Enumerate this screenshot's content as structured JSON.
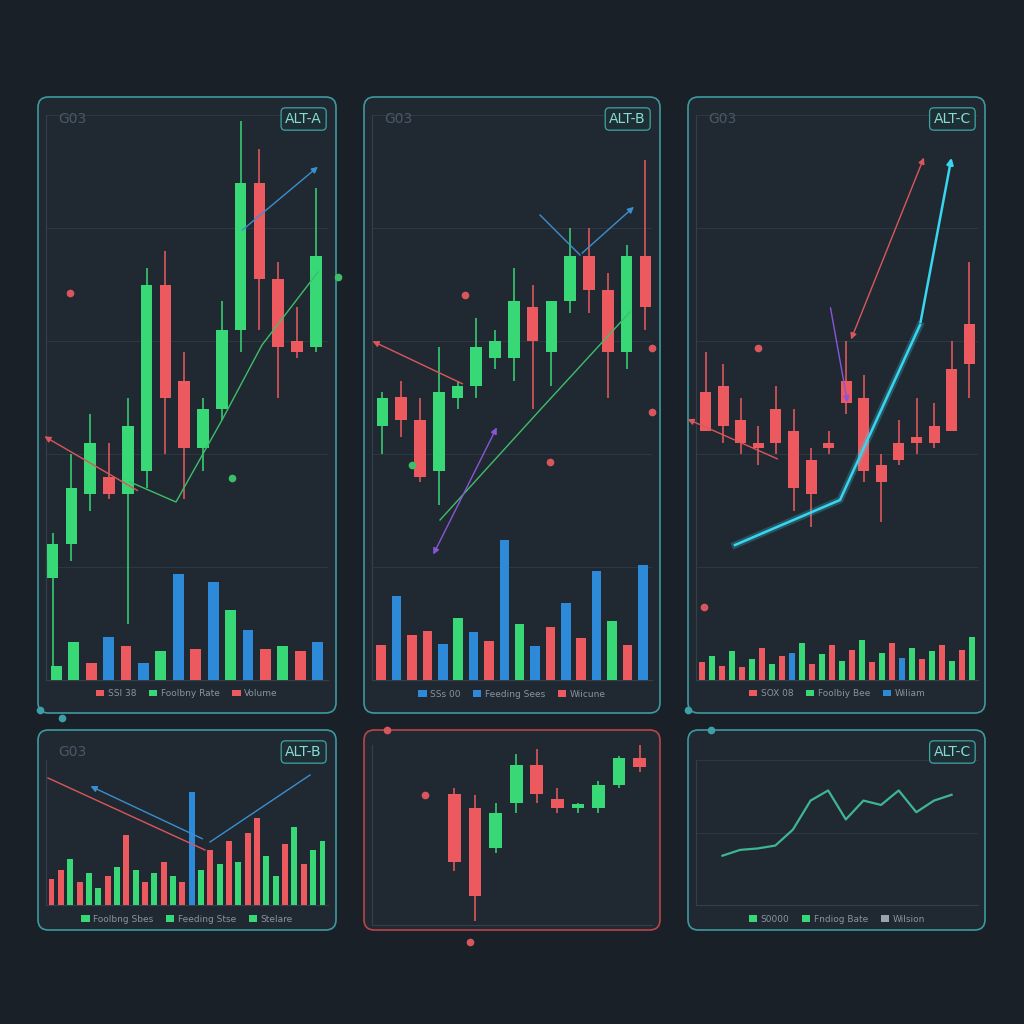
{
  "chart_data": [
    {
      "type": "candlestick",
      "title": "ALT-A",
      "subtitle": "G03",
      "categories": [
        null,
        null,
        null,
        null,
        null,
        null,
        null,
        null,
        null,
        null,
        null,
        null,
        null,
        null,
        null
      ],
      "values": [
        [
          18,
          26,
          2,
          24
        ],
        [
          24,
          40,
          21,
          34
        ],
        [
          33,
          47,
          30,
          42
        ],
        [
          36,
          42,
          32,
          33
        ],
        [
          33,
          50,
          10,
          45
        ],
        [
          37,
          73,
          34,
          70
        ],
        [
          70,
          76,
          40,
          50
        ],
        [
          53,
          58,
          32,
          41
        ],
        [
          41,
          50,
          37,
          48
        ],
        [
          48,
          67,
          46,
          62
        ],
        [
          62,
          99,
          58,
          88
        ],
        [
          88,
          94,
          62,
          71
        ],
        [
          71,
          74,
          50,
          59
        ],
        [
          60,
          66,
          57,
          58
        ],
        [
          59,
          87,
          58,
          75
        ]
      ],
      "colors": [
        "#38d877",
        "#38d877",
        "#38d877",
        "#ec5a5f",
        "#38d877",
        "#38d877",
        "#ec5a5f",
        "#ec5a5f",
        "#38d877",
        "#38d877",
        "#38d877",
        "#ec5a5f",
        "#ec5a5f",
        "#ec5a5f",
        "#38d877"
      ],
      "ylim": [
        0,
        100
      ],
      "yticks": [
        0,
        20,
        40,
        60,
        80,
        100
      ],
      "grid": true,
      "tick_labels": false
    },
    {
      "type": "bar",
      "categories": [
        null,
        null,
        null,
        null,
        null,
        null,
        null,
        null,
        null,
        null,
        null,
        null,
        null,
        null,
        null,
        null
      ],
      "values": [
        12,
        32,
        14,
        36,
        28,
        14,
        24,
        88,
        26,
        82,
        58,
        42,
        26,
        28,
        24,
        32
      ],
      "colors": [
        "#38d877",
        "#38d877",
        "#ec5a5f",
        "#2d8ad8",
        "#ec5a5f",
        "#2d8ad8",
        "#38d877",
        "#2d8ad8",
        "#ec5a5f",
        "#2d8ad8",
        "#38d877",
        "#2d8ad8",
        "#ec5a5f",
        "#38d877",
        "#ec5a5f",
        "#2d8ad8"
      ],
      "ylim": [
        0,
        100
      ],
      "yticks": [
        0,
        50,
        100
      ],
      "grid": false,
      "tick_labels": false,
      "legend": "upper center",
      "key": [
        {
          "label": "SSI 38",
          "color": "#ec5a5f"
        },
        {
          "label": "Foolbny Rate",
          "color": "#38d877"
        },
        {
          "label": "Volume",
          "color": "#ec5a5f"
        }
      ]
    },
    {
      "type": "candlestick",
      "title": "ALT-B",
      "subtitle": "G03",
      "categories": [
        null,
        null,
        null,
        null,
        null,
        null,
        null,
        null,
        null,
        null,
        null,
        null,
        null,
        null,
        null
      ],
      "values": [
        [
          45,
          51,
          40,
          50
        ],
        [
          50,
          53,
          43,
          46
        ],
        [
          46,
          50,
          35,
          36
        ],
        [
          37,
          59,
          31,
          51
        ],
        [
          50,
          53,
          48,
          52
        ],
        [
          52,
          64,
          50,
          59
        ],
        [
          57,
          62,
          55,
          60
        ],
        [
          57,
          73,
          53,
          67
        ],
        [
          66,
          70,
          48,
          60
        ],
        [
          58,
          67,
          52,
          67
        ],
        [
          67,
          80,
          65,
          75
        ],
        [
          75,
          80,
          65,
          69
        ],
        [
          69,
          72,
          50,
          58
        ],
        [
          58,
          77,
          55,
          75
        ],
        [
          75,
          92,
          62,
          66
        ]
      ],
      "colors": [
        "#38d877",
        "#ec5a5f",
        "#ec5a5f",
        "#38d877",
        "#38d877",
        "#38d877",
        "#38d877",
        "#38d877",
        "#ec5a5f",
        "#38d877",
        "#38d877",
        "#ec5a5f",
        "#ec5a5f",
        "#38d877",
        "#ec5a5f"
      ],
      "ylim": [
        0,
        100
      ],
      "yticks": [
        0,
        20,
        40,
        60,
        80,
        100
      ],
      "grid": true,
      "tick_labels": false
    },
    {
      "type": "bar",
      "categories": [
        null,
        null,
        null,
        null,
        null,
        null,
        null,
        null,
        null,
        null,
        null,
        null,
        null,
        null,
        null,
        null,
        null,
        null
      ],
      "values": [
        25,
        60,
        32,
        35,
        26,
        44,
        34,
        28,
        100,
        40,
        24,
        38,
        55,
        30,
        78,
        42,
        25,
        82
      ],
      "colors": [
        "#ec5a5f",
        "#2d8ad8",
        "#ec5a5f",
        "#ec5a5f",
        "#2d8ad8",
        "#38d877",
        "#2d8ad8",
        "#ec5a5f",
        "#2d8ad8",
        "#38d877",
        "#2d8ad8",
        "#ec5a5f",
        "#2d8ad8",
        "#ec5a5f",
        "#2d8ad8",
        "#38d877",
        "#ec5a5f",
        "#2d8ad8"
      ],
      "ylim": [
        0,
        100
      ],
      "yticks": [
        0,
        50,
        100
      ],
      "grid": false,
      "tick_labels": false,
      "legend": "upper center",
      "key": [
        {
          "label": "SSs 00",
          "color": "#2d8ad8"
        },
        {
          "label": "Feeding Sees",
          "color": "#2d8ad8"
        },
        {
          "label": "Wiicune",
          "color": "#ec5a5f"
        }
      ]
    },
    {
      "type": "candlestick",
      "title": "ALT-C",
      "subtitle": "G03",
      "categories": [
        null,
        null,
        null,
        null,
        null,
        null,
        null,
        null,
        null,
        null,
        null,
        null,
        null,
        null,
        null,
        null
      ],
      "values": [
        [
          51,
          58,
          44,
          44
        ],
        [
          52,
          56,
          42,
          45
        ],
        [
          46,
          50,
          40,
          42
        ],
        [
          42,
          45,
          38,
          41
        ],
        [
          48,
          52,
          40,
          42
        ],
        [
          44,
          48,
          30,
          34
        ],
        [
          39,
          41,
          27,
          33
        ],
        [
          42,
          44,
          40,
          41
        ],
        [
          53,
          60,
          47,
          49
        ],
        [
          50,
          54,
          35,
          37
        ],
        [
          38,
          40,
          28,
          35
        ],
        [
          42,
          46,
          38,
          39
        ],
        [
          43,
          50,
          40,
          42
        ],
        [
          45,
          49,
          41,
          42
        ],
        [
          55,
          60,
          44,
          44
        ],
        [
          63,
          74,
          50,
          56
        ]
      ],
      "colors": [
        "#ec5a5f",
        "#ec5a5f",
        "#ec5a5f",
        "#ec5a5f",
        "#ec5a5f",
        "#ec5a5f",
        "#ec5a5f",
        "#ec5a5f",
        "#ec5a5f",
        "#ec5a5f",
        "#ec5a5f",
        "#ec5a5f",
        "#ec5a5f",
        "#ec5a5f",
        "#ec5a5f",
        "#ec5a5f"
      ],
      "ylim": [
        0,
        100
      ],
      "yticks": [
        0,
        20,
        40,
        60,
        80,
        100
      ],
      "grid": true,
      "tick_labels": false
    },
    {
      "type": "bar",
      "categories": [
        null,
        null,
        null,
        null,
        null,
        null,
        null,
        null,
        null,
        null,
        null,
        null,
        null,
        null,
        null,
        null,
        null,
        null,
        null,
        null,
        null,
        null,
        null,
        null,
        null,
        null,
        null,
        null
      ],
      "values": [
        22,
        30,
        18,
        36,
        16,
        26,
        40,
        20,
        30,
        34,
        46,
        20,
        32,
        44,
        24,
        38,
        50,
        22,
        34,
        46,
        28,
        40,
        26,
        36,
        44,
        24,
        38,
        54
      ],
      "colors": [
        "#ec5a5f",
        "#38d877",
        "#ec5a5f",
        "#38d877",
        "#ec5a5f",
        "#38d877",
        "#ec5a5f",
        "#38d877",
        "#ec5a5f",
        "#2d8ad8",
        "#38d877",
        "#ec5a5f",
        "#38d877",
        "#ec5a5f",
        "#38d877",
        "#ec5a5f",
        "#38d877",
        "#ec5a5f",
        "#38d877",
        "#ec5a5f",
        "#2d8ad8",
        "#38d877",
        "#ec5a5f",
        "#38d877",
        "#ec5a5f",
        "#38d877",
        "#ec5a5f",
        "#38d877"
      ],
      "ylim": [
        0,
        100
      ],
      "yticks": [
        0,
        50,
        100
      ],
      "grid": false,
      "tick_labels": false,
      "legend": "upper center",
      "key": [
        {
          "label": "SOX 08",
          "color": "#ec5a5f"
        },
        {
          "label": "Foolbiy Bee",
          "color": "#38d877"
        },
        {
          "label": "Wiliam",
          "color": "#2d8ad8"
        }
      ]
    },
    {
      "type": "bar",
      "title": "ALT-B",
      "subtitle": "G03",
      "categories": [
        null,
        null,
        null,
        null,
        null,
        null,
        null,
        null,
        null,
        null,
        null,
        null,
        null,
        null,
        null,
        null,
        null,
        null,
        null,
        null,
        null,
        null,
        null,
        null,
        null,
        null,
        null,
        null,
        null,
        null
      ],
      "values": [
        18,
        24,
        32,
        16,
        22,
        12,
        20,
        26,
        48,
        24,
        16,
        22,
        30,
        20,
        16,
        78,
        24,
        38,
        28,
        44,
        30,
        50,
        60,
        34,
        20,
        42,
        54,
        28,
        38,
        44
      ],
      "colors": [
        "#ec5a5f",
        "#ec5a5f",
        "#38d877",
        "#ec5a5f",
        "#38d877",
        "#38d877",
        "#ec5a5f",
        "#38d877",
        "#ec5a5f",
        "#38d877",
        "#ec5a5f",
        "#38d877",
        "#ec5a5f",
        "#38d877",
        "#ec5a5f",
        "#2d8ad8",
        "#38d877",
        "#ec5a5f",
        "#38d877",
        "#ec5a5f",
        "#38d877",
        "#ec5a5f",
        "#ec5a5f",
        "#38d877",
        "#38d877",
        "#ec5a5f",
        "#38d877",
        "#ec5a5f",
        "#38d877",
        "#38d877"
      ],
      "ylim": [
        0,
        100
      ],
      "yticks": [
        0,
        50,
        100
      ],
      "grid": false,
      "tick_labels": false,
      "legend": "upper center",
      "key": [
        {
          "label": "Foolbng Sbes",
          "color": "#38d877"
        },
        {
          "label": "Feeding Stse",
          "color": "#38d877"
        },
        {
          "label": "Stelare",
          "color": "#38d877"
        }
      ]
    },
    {
      "type": "candlestick",
      "categories": [
        null,
        null,
        null,
        null,
        null,
        null,
        null,
        null,
        null,
        null
      ],
      "values": [
        [
          73,
          76,
          30,
          35
        ],
        [
          65,
          72,
          2,
          16
        ],
        [
          43,
          68,
          40,
          62
        ],
        [
          68,
          95,
          62,
          89
        ],
        [
          89,
          98,
          68,
          73
        ],
        [
          70,
          76,
          62,
          65
        ],
        [
          65,
          68,
          62,
          67
        ],
        [
          65,
          80,
          62,
          78
        ],
        [
          78,
          94,
          76,
          93
        ],
        [
          93,
          100,
          85,
          88
        ]
      ],
      "colors": [
        "#ec5a5f",
        "#ec5a5f",
        "#38d877",
        "#38d877",
        "#ec5a5f",
        "#ec5a5f",
        "#38d877",
        "#38d877",
        "#38d877",
        "#ec5a5f"
      ],
      "ylim": [
        0,
        100
      ],
      "yticks": [
        0,
        50,
        100
      ],
      "grid": false,
      "tick_labels": false
    },
    {
      "type": "line",
      "title": "ALT-C",
      "categories": [
        null,
        null,
        null,
        null,
        null,
        null,
        null,
        null,
        null,
        null,
        null,
        null,
        null,
        null
      ],
      "values": [
        34,
        38,
        39,
        41,
        52,
        72,
        79,
        59,
        72,
        69,
        79,
        64,
        72,
        76
      ],
      "color": "#3fb592",
      "ylim": [
        0,
        100
      ],
      "yticks": [
        0,
        50,
        100
      ],
      "grid": true,
      "tick_labels": false,
      "legend": "upper center",
      "key": [
        {
          "label": "S0000",
          "color": "#38d877"
        },
        {
          "label": "Fndiog Bate",
          "color": "#38d877"
        },
        {
          "label": "Wilsion",
          "color": "#9aa3ad"
        }
      ]
    }
  ]
}
